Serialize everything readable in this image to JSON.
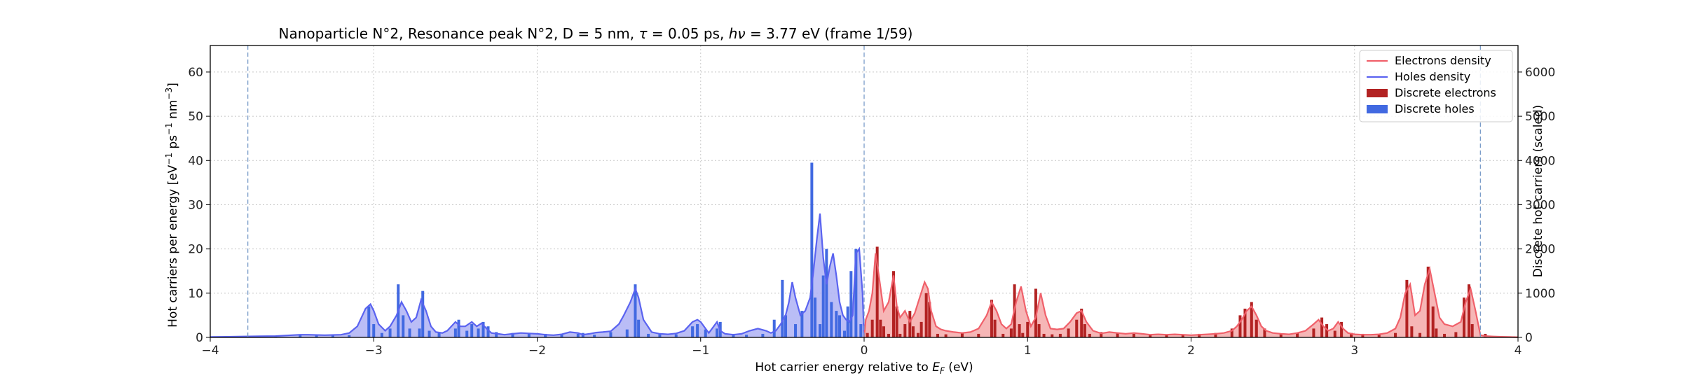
{
  "chart_data": {
    "type": "bar",
    "title": "Nanoparticle N°2, Resonance peak N°2, D = 5 nm, τ = 0.05 ps, hν = 3.77 eV   (frame 1/59)",
    "title_parts": {
      "prefix": "Nanoparticle N°2, Resonance peak N°2, D = 5 nm, ",
      "tau_symbol": "τ",
      "tau_value": " = 0.05 ps, ",
      "hnu_symbol": "hν",
      "suffix": " = 3.77 eV   (frame 1/59)"
    },
    "xlabel": "Hot carrier energy relative to E_F (eV)",
    "xlabel_parts": {
      "prefix": "Hot carrier energy relative to ",
      "symbol": "E",
      "subscript": "F",
      "suffix": " (eV)"
    },
    "ylabel": "Hot carriers per energy [eV⁻¹ ps⁻¹ nm⁻³]",
    "ylabel_parts": {
      "prefix": "Hot carriers per energy [eV",
      "sup1": "−1",
      "mid1": " ps",
      "sup2": "−1",
      "mid2": " nm",
      "sup3": "−3",
      "suffix": "]"
    },
    "y2label": "Discrete hot carriers (scaled)",
    "xlim": [
      -4,
      4
    ],
    "ylim": [
      0,
      66
    ],
    "y2lim": [
      0,
      6600
    ],
    "x_ticks": [
      -4,
      -3,
      -2,
      -1,
      0,
      1,
      2,
      3,
      4
    ],
    "x_tick_labels": [
      "−4",
      "−3",
      "−2",
      "−1",
      "0",
      "1",
      "2",
      "3",
      "4"
    ],
    "y_ticks": [
      0,
      10,
      20,
      30,
      40,
      50,
      60
    ],
    "y_tick_labels": [
      "0",
      "10",
      "20",
      "30",
      "40",
      "50",
      "60"
    ],
    "y2_ticks": [
      0,
      1000,
      2000,
      3000,
      4000,
      5000,
      6000
    ],
    "y2_tick_labels": [
      "0",
      "1000",
      "2000",
      "3000",
      "4000",
      "5000",
      "6000"
    ],
    "grid": true,
    "vlines": [
      -3.77,
      0,
      3.77
    ],
    "legend_position": "top-right",
    "legend": [
      {
        "label": "Electrons density",
        "kind": "line",
        "color": "#f0606a"
      },
      {
        "label": "Holes density",
        "kind": "line",
        "color": "#5a63f0"
      },
      {
        "label": "Discrete electrons",
        "kind": "patch",
        "color": "#b22222"
      },
      {
        "label": "Discrete holes",
        "kind": "patch",
        "color": "#4169e1"
      }
    ],
    "colors": {
      "electrons_line": "#f0606a",
      "electrons_fill": "#f4a9a9",
      "holes_line": "#5a63f0",
      "holes_fill": "#aeb2f5",
      "discrete_electrons": "#b22222",
      "discrete_holes": "#4169e1",
      "vline": "#7a9cc9",
      "grid": "#c8c8c8"
    },
    "series": [
      {
        "name": "Holes density",
        "axis": "left",
        "x": [
          -4.0,
          -3.9,
          -3.8,
          -3.7,
          -3.6,
          -3.5,
          -3.45,
          -3.4,
          -3.3,
          -3.2,
          -3.15,
          -3.1,
          -3.05,
          -3.02,
          -3.0,
          -2.97,
          -2.93,
          -2.9,
          -2.86,
          -2.83,
          -2.8,
          -2.77,
          -2.74,
          -2.71,
          -2.68,
          -2.65,
          -2.62,
          -2.58,
          -2.55,
          -2.5,
          -2.47,
          -2.44,
          -2.4,
          -2.37,
          -2.34,
          -2.31,
          -2.28,
          -2.24,
          -2.2,
          -2.15,
          -2.1,
          -2.05,
          -2.0,
          -1.95,
          -1.9,
          -1.85,
          -1.8,
          -1.75,
          -1.72,
          -1.68,
          -1.64,
          -1.6,
          -1.55,
          -1.5,
          -1.47,
          -1.43,
          -1.4,
          -1.38,
          -1.35,
          -1.3,
          -1.25,
          -1.2,
          -1.15,
          -1.1,
          -1.05,
          -1.02,
          -1.0,
          -0.97,
          -0.95,
          -0.92,
          -0.9,
          -0.88,
          -0.85,
          -0.8,
          -0.75,
          -0.7,
          -0.65,
          -0.6,
          -0.57,
          -0.54,
          -0.51,
          -0.48,
          -0.46,
          -0.44,
          -0.42,
          -0.39,
          -0.36,
          -0.33,
          -0.31,
          -0.29,
          -0.27,
          -0.25,
          -0.23,
          -0.21,
          -0.19,
          -0.17,
          -0.15,
          -0.13,
          -0.11,
          -0.09,
          -0.07,
          -0.05,
          -0.03,
          -0.01,
          0.0
        ],
        "y": [
          0.1,
          0.15,
          0.2,
          0.25,
          0.3,
          0.5,
          0.6,
          0.6,
          0.5,
          0.6,
          1.0,
          2.5,
          6.5,
          7.5,
          6.0,
          3.0,
          1.5,
          2.5,
          5.0,
          8.0,
          6.0,
          3.5,
          4.5,
          8.5,
          6.0,
          2.5,
          1.2,
          1.0,
          1.5,
          3.5,
          2.5,
          2.5,
          3.5,
          2.5,
          3.2,
          2.0,
          1.0,
          0.8,
          0.6,
          0.8,
          1.0,
          0.9,
          0.8,
          0.6,
          0.5,
          0.7,
          1.2,
          1.0,
          0.6,
          0.8,
          1.1,
          1.2,
          1.4,
          3.0,
          5.0,
          8.0,
          11.0,
          9.0,
          4.0,
          1.2,
          0.8,
          0.7,
          0.9,
          1.5,
          3.5,
          4.0,
          3.5,
          2.0,
          1.0,
          2.5,
          3.5,
          1.5,
          0.8,
          0.6,
          0.8,
          1.5,
          2.0,
          1.5,
          1.0,
          1.5,
          3.0,
          5.0,
          8.0,
          12.5,
          9.0,
          5.0,
          6.0,
          9.0,
          15.0,
          22.0,
          28.0,
          18.0,
          12.0,
          16.0,
          19.0,
          14.0,
          8.0,
          5.0,
          4.0,
          3.5,
          5.0,
          19.0,
          20.0,
          10.0,
          0.0
        ]
      },
      {
        "name": "Electrons density",
        "axis": "left",
        "x": [
          0.0,
          0.01,
          0.03,
          0.05,
          0.07,
          0.09,
          0.12,
          0.15,
          0.18,
          0.2,
          0.22,
          0.25,
          0.28,
          0.31,
          0.34,
          0.37,
          0.39,
          0.41,
          0.44,
          0.47,
          0.5,
          0.55,
          0.6,
          0.65,
          0.7,
          0.75,
          0.78,
          0.81,
          0.84,
          0.87,
          0.9,
          0.93,
          0.96,
          0.99,
          1.02,
          1.05,
          1.08,
          1.11,
          1.14,
          1.18,
          1.22,
          1.26,
          1.3,
          1.33,
          1.36,
          1.4,
          1.45,
          1.5,
          1.55,
          1.6,
          1.65,
          1.7,
          1.75,
          1.8,
          1.85,
          1.9,
          1.95,
          2.0,
          2.05,
          2.1,
          2.15,
          2.2,
          2.25,
          2.28,
          2.31,
          2.34,
          2.37,
          2.4,
          2.43,
          2.46,
          2.5,
          2.55,
          2.6,
          2.65,
          2.7,
          2.75,
          2.78,
          2.81,
          2.84,
          2.87,
          2.9,
          2.93,
          2.96,
          3.0,
          3.05,
          3.1,
          3.15,
          3.2,
          3.25,
          3.28,
          3.31,
          3.34,
          3.37,
          3.4,
          3.43,
          3.46,
          3.49,
          3.52,
          3.55,
          3.6,
          3.65,
          3.68,
          3.71,
          3.74,
          3.77,
          3.8,
          3.85,
          3.9,
          3.95,
          4.0
        ],
        "y": [
          0.0,
          4.0,
          6.0,
          10.0,
          19.0,
          14.0,
          6.0,
          8.0,
          14.0,
          7.0,
          4.5,
          6.0,
          3.5,
          5.5,
          9.0,
          12.5,
          11.0,
          6.0,
          2.5,
          1.8,
          1.5,
          1.2,
          1.0,
          1.2,
          2.0,
          5.0,
          8.0,
          6.0,
          3.0,
          2.0,
          3.0,
          8.0,
          11.5,
          6.0,
          2.5,
          4.5,
          10.0,
          5.0,
          2.0,
          1.8,
          2.0,
          3.5,
          5.5,
          6.0,
          3.5,
          1.5,
          0.9,
          1.2,
          1.0,
          0.8,
          1.0,
          0.8,
          0.6,
          0.7,
          0.6,
          0.7,
          0.6,
          0.5,
          0.6,
          0.7,
          0.8,
          1.0,
          1.5,
          2.5,
          4.0,
          6.0,
          7.0,
          5.0,
          2.5,
          1.5,
          1.0,
          0.8,
          0.7,
          1.0,
          1.5,
          3.0,
          4.0,
          2.5,
          1.5,
          2.0,
          3.5,
          2.0,
          1.0,
          0.7,
          0.6,
          0.6,
          0.7,
          1.0,
          2.0,
          4.5,
          10.0,
          12.0,
          5.0,
          6.0,
          12.0,
          15.5,
          10.0,
          4.5,
          3.0,
          2.5,
          3.5,
          8.0,
          11.0,
          6.0,
          0.5,
          0.3,
          0.2,
          0.15,
          0.1,
          0.05
        ]
      }
    ],
    "bars": {
      "axis": "right",
      "units": "scaled count",
      "holes": {
        "name": "Discrete holes",
        "x": [
          -3.95,
          -3.85,
          -3.7,
          -3.6,
          -3.45,
          -3.35,
          -3.25,
          -3.15,
          -3.03,
          -3.0,
          -2.95,
          -2.9,
          -2.85,
          -2.82,
          -2.78,
          -2.72,
          -2.7,
          -2.66,
          -2.6,
          -2.5,
          -2.48,
          -2.43,
          -2.4,
          -2.36,
          -2.33,
          -2.3,
          -2.25,
          -2.15,
          -2.05,
          -1.95,
          -1.85,
          -1.75,
          -1.72,
          -1.65,
          -1.55,
          -1.45,
          -1.4,
          -1.38,
          -1.32,
          -1.25,
          -1.15,
          -1.05,
          -1.02,
          -0.97,
          -0.9,
          -0.88,
          -0.8,
          -0.72,
          -0.62,
          -0.55,
          -0.5,
          -0.48,
          -0.42,
          -0.38,
          -0.32,
          -0.3,
          -0.27,
          -0.25,
          -0.23,
          -0.2,
          -0.17,
          -0.15,
          -0.12,
          -0.1,
          -0.08,
          -0.05,
          -0.02
        ],
        "y": [
          20,
          20,
          30,
          30,
          60,
          50,
          40,
          50,
          700,
          300,
          100,
          200,
          1200,
          500,
          200,
          200,
          1050,
          150,
          100,
          200,
          400,
          150,
          300,
          200,
          350,
          250,
          120,
          100,
          100,
          80,
          80,
          80,
          100,
          60,
          120,
          180,
          1200,
          400,
          80,
          70,
          70,
          250,
          300,
          180,
          200,
          350,
          80,
          60,
          80,
          400,
          1300,
          500,
          300,
          600,
          3950,
          900,
          300,
          1400,
          2000,
          800,
          600,
          500,
          150,
          700,
          1500,
          2000,
          300
        ]
      },
      "electrons": {
        "name": "Discrete electrons",
        "x": [
          0.02,
          0.05,
          0.08,
          0.1,
          0.12,
          0.15,
          0.18,
          0.2,
          0.22,
          0.25,
          0.28,
          0.3,
          0.33,
          0.35,
          0.38,
          0.4,
          0.45,
          0.5,
          0.6,
          0.7,
          0.78,
          0.8,
          0.85,
          0.9,
          0.92,
          0.95,
          0.97,
          1.0,
          1.05,
          1.07,
          1.1,
          1.15,
          1.2,
          1.25,
          1.3,
          1.33,
          1.35,
          1.38,
          1.45,
          1.55,
          1.65,
          1.75,
          1.85,
          1.95,
          2.05,
          2.15,
          2.25,
          2.3,
          2.33,
          2.37,
          2.4,
          2.45,
          2.55,
          2.65,
          2.75,
          2.8,
          2.83,
          2.88,
          2.92,
          2.98,
          3.05,
          3.15,
          3.25,
          3.32,
          3.35,
          3.4,
          3.45,
          3.48,
          3.5,
          3.55,
          3.62,
          3.67,
          3.7,
          3.72,
          3.8
        ],
        "y": [
          100,
          400,
          2050,
          400,
          250,
          80,
          1500,
          700,
          80,
          300,
          600,
          250,
          100,
          350,
          1000,
          800,
          80,
          70,
          100,
          80,
          850,
          400,
          80,
          200,
          1200,
          300,
          100,
          350,
          1100,
          300,
          80,
          70,
          80,
          200,
          400,
          650,
          300,
          80,
          120,
          100,
          80,
          70,
          60,
          60,
          80,
          100,
          200,
          500,
          650,
          800,
          400,
          200,
          80,
          100,
          200,
          450,
          300,
          150,
          350,
          100,
          80,
          60,
          100,
          1300,
          250,
          100,
          1600,
          700,
          200,
          80,
          120,
          900,
          1200,
          300,
          80
        ]
      }
    }
  }
}
